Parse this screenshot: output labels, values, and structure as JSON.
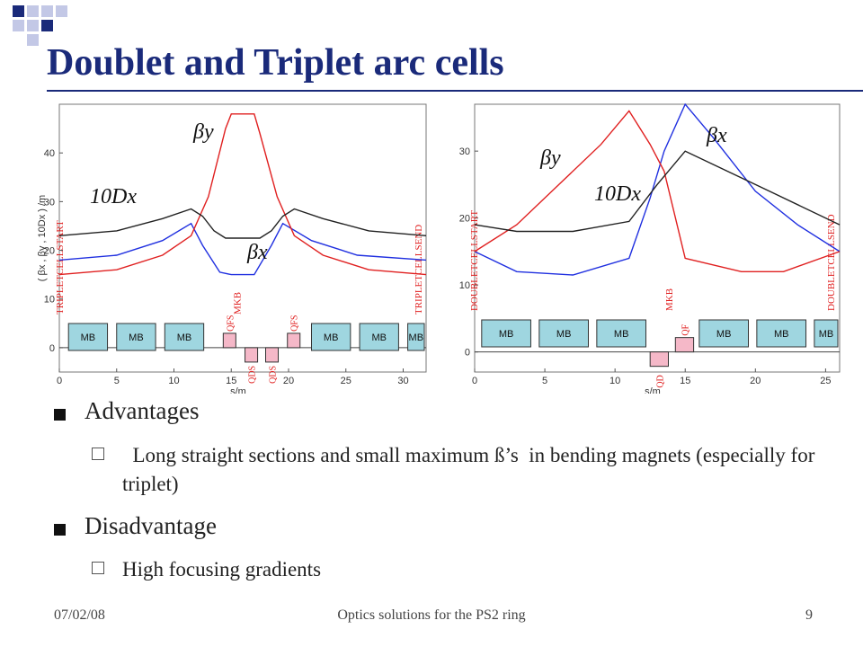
{
  "slide": {
    "title": "Doublet and Triplet arc cells",
    "bullets": [
      {
        "label": "Advantages",
        "subs": [
          "  Long straight sections and small maximum ß’s  in bending magnets (especially for triplet)"
        ]
      },
      {
        "label": "Disadvantage",
        "subs": [
          "High focusing gradients"
        ]
      }
    ],
    "footer": {
      "date": "07/02/08",
      "center": "Optics solutions for the PS2 ring",
      "page": "9"
    }
  },
  "colors": {
    "title": "#1a2a7a",
    "beta_y": "#e02020",
    "beta_x": "#2030e0",
    "dispersion": "#222222",
    "dipole": "#9fd6e0",
    "quad": "#f5b8c8"
  },
  "chart_data": [
    {
      "type": "line",
      "ylabel": "( βx , βy , 10Dx ) /m",
      "xlabel": "s/m",
      "xlim": [
        0,
        32
      ],
      "ylim": [
        -5,
        50
      ],
      "xticks": [
        0,
        5,
        10,
        15,
        20,
        25,
        30
      ],
      "yticks": [
        0,
        10,
        20,
        30,
        40
      ],
      "series": [
        {
          "name": "βx",
          "points": [
            [
              0,
              18
            ],
            [
              5,
              19
            ],
            [
              9,
              22
            ],
            [
              11.5,
              25.5
            ],
            [
              12.5,
              21
            ],
            [
              14,
              15.5
            ],
            [
              15,
              15
            ],
            [
              17,
              15
            ],
            [
              18.5,
              21
            ],
            [
              19.5,
              25.5
            ],
            [
              22,
              22
            ],
            [
              26,
              19
            ],
            [
              32,
              18
            ]
          ]
        },
        {
          "name": "βy",
          "points": [
            [
              0,
              15
            ],
            [
              5,
              16
            ],
            [
              9,
              19
            ],
            [
              11.5,
              23
            ],
            [
              13,
              31
            ],
            [
              14.5,
              45
            ],
            [
              15,
              48
            ],
            [
              17,
              48
            ],
            [
              17.5,
              44
            ],
            [
              19,
              31
            ],
            [
              20.5,
              23
            ],
            [
              23,
              19
            ],
            [
              27,
              16
            ],
            [
              32,
              15
            ]
          ]
        },
        {
          "name": "10Dx",
          "points": [
            [
              0,
              23
            ],
            [
              5,
              24
            ],
            [
              9,
              26.5
            ],
            [
              11.5,
              28.5
            ],
            [
              12.5,
              27
            ],
            [
              13.5,
              24
            ],
            [
              14.5,
              22.5
            ],
            [
              17.5,
              22.5
            ],
            [
              18.5,
              24
            ],
            [
              19.5,
              27
            ],
            [
              20.5,
              28.5
            ],
            [
              23,
              26.5
            ],
            [
              27,
              24
            ],
            [
              32,
              23
            ]
          ]
        }
      ],
      "elements": [
        {
          "label": "MB",
          "kind": "dipole",
          "s": [
            0.8,
            4.2
          ]
        },
        {
          "label": "MB",
          "kind": "dipole",
          "s": [
            5.0,
            8.4
          ]
        },
        {
          "label": "MB",
          "kind": "dipole",
          "s": [
            9.2,
            12.6
          ]
        },
        {
          "label": "QFS",
          "kind": "quad-up",
          "s": [
            14.3,
            15.4
          ]
        },
        {
          "label": "QDS",
          "kind": "quad-down",
          "s": [
            16.2,
            17.3
          ]
        },
        {
          "label": "QDS",
          "kind": "quad-down",
          "s": [
            18.0,
            19.1
          ]
        },
        {
          "label": "QFS",
          "kind": "quad-up",
          "s": [
            19.9,
            21.0
          ]
        },
        {
          "label": "MB",
          "kind": "dipole",
          "s": [
            22.0,
            25.4
          ]
        },
        {
          "label": "MB",
          "kind": "dipole",
          "s": [
            26.2,
            29.6
          ]
        },
        {
          "label": "MB",
          "kind": "dipole",
          "s": [
            30.4,
            33.8
          ]
        }
      ],
      "markers": [
        {
          "text": "TRIPLETCELLSTART",
          "s": 0.3
        },
        {
          "text": "MKB",
          "s": 15.8
        },
        {
          "text": "TRIPLETCELLSEND",
          "s": 31.6
        }
      ],
      "labels": {
        "beta_y": "βy",
        "beta_x": "βx",
        "disp": "10Dx"
      }
    },
    {
      "type": "line",
      "xlabel": "s/m",
      "xlim": [
        0,
        26
      ],
      "ylim": [
        -3,
        37
      ],
      "xticks": [
        0,
        5,
        10,
        15,
        20,
        25
      ],
      "yticks": [
        0,
        10,
        20,
        30
      ],
      "series": [
        {
          "name": "βx",
          "points": [
            [
              0,
              15
            ],
            [
              3,
              12
            ],
            [
              7,
              11.5
            ],
            [
              11,
              14
            ],
            [
              12.5,
              23
            ],
            [
              13.5,
              30
            ],
            [
              15,
              37
            ],
            [
              17,
              32
            ],
            [
              20,
              24
            ],
            [
              23,
              19
            ],
            [
              26,
              15
            ]
          ]
        },
        {
          "name": "βy",
          "points": [
            [
              0,
              15
            ],
            [
              3,
              19
            ],
            [
              6,
              25
            ],
            [
              9,
              31
            ],
            [
              11,
              36
            ],
            [
              12.5,
              31
            ],
            [
              13.5,
              27
            ],
            [
              15,
              14
            ],
            [
              19,
              12
            ],
            [
              22,
              12
            ],
            [
              26,
              15
            ]
          ]
        },
        {
          "name": "10Dx",
          "points": [
            [
              0,
              19
            ],
            [
              3,
              18
            ],
            [
              7,
              18
            ],
            [
              11,
              19.5
            ],
            [
              13,
              25
            ],
            [
              15,
              30
            ],
            [
              18,
              27
            ],
            [
              21,
              24
            ],
            [
              26,
              19
            ]
          ]
        }
      ],
      "elements": [
        {
          "label": "MB",
          "kind": "dipole",
          "s": [
            0.5,
            4.0
          ]
        },
        {
          "label": "MB",
          "kind": "dipole",
          "s": [
            4.6,
            8.1
          ]
        },
        {
          "label": "MB",
          "kind": "dipole",
          "s": [
            8.7,
            12.2
          ]
        },
        {
          "label": "QD",
          "kind": "quad-down",
          "s": [
            12.5,
            13.8
          ]
        },
        {
          "label": "QF",
          "kind": "quad-up",
          "s": [
            14.3,
            15.6
          ]
        },
        {
          "label": "MB",
          "kind": "dipole",
          "s": [
            16.0,
            19.5
          ]
        },
        {
          "label": "MB",
          "kind": "dipole",
          "s": [
            20.1,
            23.6
          ]
        },
        {
          "label": "MB",
          "kind": "dipole",
          "s": [
            24.2,
            27.7
          ]
        }
      ],
      "markers": [
        {
          "text": "DOUBLETCELLSTART",
          "s": 0.2
        },
        {
          "text": "MKB",
          "s": 14.1
        },
        {
          "text": "DOUBLETCELLSEND",
          "s": 25.6
        }
      ],
      "labels": {
        "beta_y": "βy",
        "beta_x": "βx",
        "disp": "10Dx"
      }
    }
  ]
}
